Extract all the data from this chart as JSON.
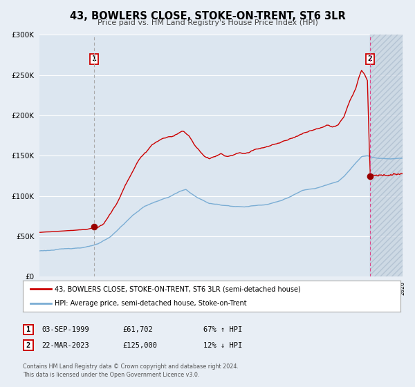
{
  "title": "43, BOWLERS CLOSE, STOKE-ON-TRENT, ST6 3LR",
  "subtitle": "Price paid vs. HM Land Registry's House Price Index (HPI)",
  "bg_color": "#e8eef5",
  "plot_bg_color": "#dce6f0",
  "grid_color": "#ffffff",
  "red_line_color": "#cc0000",
  "blue_line_color": "#7aadd4",
  "marker1_date": 1999.67,
  "marker1_value": 61702,
  "marker2_date": 2023.22,
  "marker2_value": 125000,
  "vline1_color": "#aaaaaa",
  "vline2_color": "#dd4488",
  "legend_label_red": "43, BOWLERS CLOSE, STOKE-ON-TRENT, ST6 3LR (semi-detached house)",
  "legend_label_blue": "HPI: Average price, semi-detached house, Stoke-on-Trent",
  "transaction1_date": "03-SEP-1999",
  "transaction1_price": "£61,702",
  "transaction1_hpi": "67% ↑ HPI",
  "transaction2_date": "22-MAR-2023",
  "transaction2_price": "£125,000",
  "transaction2_hpi": "12% ↓ HPI",
  "footnote1": "Contains HM Land Registry data © Crown copyright and database right 2024.",
  "footnote2": "This data is licensed under the Open Government Licence v3.0.",
  "xmin": 1995,
  "xmax": 2026,
  "ymin": 0,
  "ymax": 300000,
  "yticks": [
    0,
    50000,
    100000,
    150000,
    200000,
    250000,
    300000
  ]
}
